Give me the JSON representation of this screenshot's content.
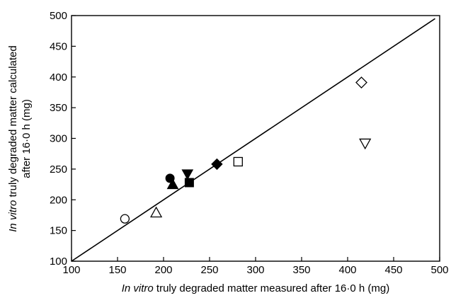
{
  "chart_data": {
    "type": "scatter",
    "title": "",
    "xlabel_italic": "In vitro",
    "xlabel_rest": " truly degraded matter measured after 16·0 h (mg)",
    "ylabel_line1_italic": "In vitro",
    "ylabel_line1_rest": " truly degraded matter calculated",
    "ylabel_line2": "after 16·0 h (mg)",
    "xlim": [
      100,
      500
    ],
    "ylim": [
      100,
      500
    ],
    "xticks": [
      "100",
      "150",
      "200",
      "250",
      "300",
      "350",
      "400",
      "450",
      "500"
    ],
    "yticks": [
      "100",
      "150",
      "200",
      "250",
      "300",
      "350",
      "400",
      "450",
      "500"
    ],
    "grid": false,
    "reference_line": {
      "x": [
        100,
        495
      ],
      "y": [
        100,
        495
      ]
    },
    "points": [
      {
        "marker": "circle-open",
        "x": 158,
        "y": 169
      },
      {
        "marker": "triangle-up-open",
        "x": 192,
        "y": 179
      },
      {
        "marker": "circle-filled",
        "x": 207,
        "y": 235
      },
      {
        "marker": "triangle-up-filled",
        "x": 210,
        "y": 225
      },
      {
        "marker": "triangle-down-filled",
        "x": 226,
        "y": 242
      },
      {
        "marker": "square-filled",
        "x": 228,
        "y": 228
      },
      {
        "marker": "diamond-filled",
        "x": 258,
        "y": 258
      },
      {
        "marker": "square-open",
        "x": 281,
        "y": 262
      },
      {
        "marker": "diamond-open",
        "x": 415,
        "y": 391
      },
      {
        "marker": "triangle-down-open",
        "x": 419,
        "y": 292
      }
    ]
  }
}
